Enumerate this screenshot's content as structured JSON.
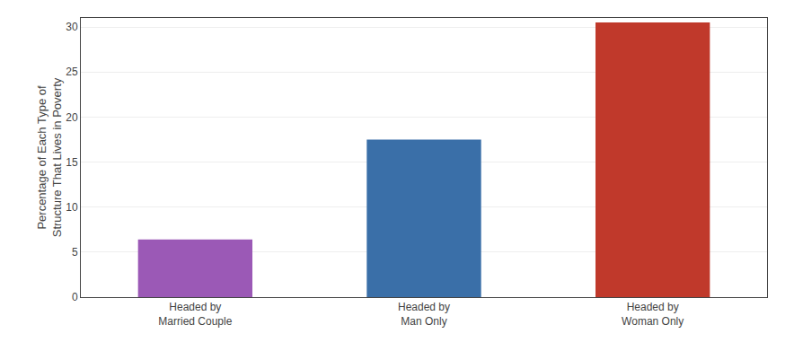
{
  "chart_data": {
    "type": "bar",
    "categories": [
      "Headed by\nMarried Couple",
      "Headed by\nMan Only",
      "Headed by\nWoman Only"
    ],
    "values": [
      6.4,
      17.5,
      30.5
    ],
    "colors": [
      "#9b59b6",
      "#3a6fa8",
      "#c0392b"
    ],
    "ylabel": "Percentage of Each Type of\nStructure That Lives in Poverty",
    "ylim": [
      0,
      31
    ],
    "yticks": [
      0,
      5,
      10,
      15,
      20,
      25,
      30
    ],
    "grid": true
  }
}
